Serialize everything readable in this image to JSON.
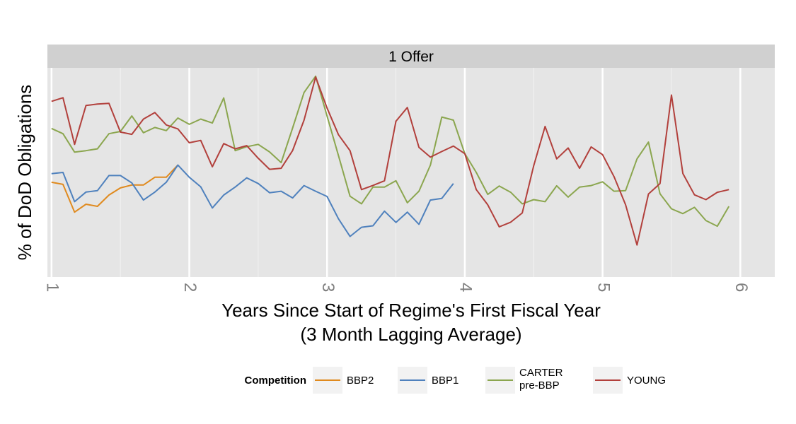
{
  "chart_data": {
    "type": "line",
    "panel_title": "1 Offer",
    "xlabel": "Years Since Start of Regime's First Fiscal Year",
    "xlabel_sub": "(3 Month Lagging Average)",
    "ylabel": "% of DoD Obligations",
    "xlim": [
      0.97,
      6.25
    ],
    "ylim": [
      0,
      1
    ],
    "x_ticks": [
      "1",
      "2",
      "3",
      "4",
      "5",
      "6"
    ],
    "y_ticks_shown": false,
    "grid": true,
    "legend": {
      "title": "Competition",
      "position": "bottom"
    },
    "series": [
      {
        "name": "BBP2",
        "color": "#e08a1e",
        "x": [
          1.0,
          1.083,
          1.167,
          1.25,
          1.333,
          1.417,
          1.5,
          1.583,
          1.667,
          1.75,
          1.833,
          1.917
        ],
        "y": [
          0.453,
          0.443,
          0.31,
          0.348,
          0.338,
          0.392,
          0.426,
          0.44,
          0.44,
          0.477,
          0.477,
          0.535
        ]
      },
      {
        "name": "BBP1",
        "color": "#4f81bd",
        "x": [
          1.0,
          1.083,
          1.167,
          1.25,
          1.333,
          1.417,
          1.5,
          1.583,
          1.667,
          1.75,
          1.833,
          1.917,
          2.0,
          2.083,
          2.167,
          2.25,
          2.333,
          2.417,
          2.5,
          2.583,
          2.667,
          2.75,
          2.833,
          2.917,
          3.0,
          3.083,
          3.167,
          3.25,
          3.333,
          3.417,
          3.5,
          3.583,
          3.667,
          3.75,
          3.833,
          3.917
        ],
        "y": [
          0.494,
          0.5,
          0.36,
          0.406,
          0.413,
          0.485,
          0.485,
          0.45,
          0.368,
          0.406,
          0.453,
          0.535,
          0.477,
          0.431,
          0.33,
          0.392,
          0.43,
          0.474,
          0.447,
          0.403,
          0.41,
          0.378,
          0.437,
          0.41,
          0.385,
          0.278,
          0.194,
          0.238,
          0.245,
          0.315,
          0.261,
          0.31,
          0.252,
          0.368,
          0.376,
          0.447
        ]
      },
      {
        "name": "CARTER\npre-BBP",
        "color": "#8ba64f",
        "x": [
          1.0,
          1.083,
          1.167,
          1.25,
          1.333,
          1.417,
          1.5,
          1.583,
          1.667,
          1.75,
          1.833,
          1.917,
          2.0,
          2.083,
          2.167,
          2.25,
          2.333,
          2.417,
          2.5,
          2.583,
          2.667,
          2.75,
          2.833,
          2.917,
          3.0,
          3.083,
          3.167,
          3.25,
          3.333,
          3.417,
          3.5,
          3.583,
          3.667,
          3.75,
          3.833,
          3.917,
          4.0,
          4.083,
          4.167,
          4.25,
          4.333,
          4.417,
          4.5,
          4.583,
          4.667,
          4.75,
          4.833,
          4.917,
          5.0,
          5.083,
          5.167,
          5.25,
          5.333,
          5.417,
          5.5,
          5.583,
          5.667,
          5.75,
          5.833,
          5.917
        ],
        "y": [
          0.71,
          0.685,
          0.597,
          0.604,
          0.613,
          0.685,
          0.696,
          0.77,
          0.69,
          0.715,
          0.7,
          0.76,
          0.73,
          0.755,
          0.736,
          0.856,
          0.604,
          0.623,
          0.634,
          0.598,
          0.547,
          0.713,
          0.882,
          0.96,
          0.77,
          0.58,
          0.386,
          0.35,
          0.43,
          0.43,
          0.46,
          0.355,
          0.41,
          0.535,
          0.765,
          0.75,
          0.59,
          0.5,
          0.395,
          0.435,
          0.405,
          0.35,
          0.37,
          0.36,
          0.436,
          0.382,
          0.43,
          0.437,
          0.455,
          0.41,
          0.413,
          0.565,
          0.645,
          0.398,
          0.326,
          0.303,
          0.333,
          0.27,
          0.243,
          0.338
        ]
      },
      {
        "name": "YOUNG",
        "color": "#b2403c",
        "x": [
          1.0,
          1.083,
          1.167,
          1.25,
          1.333,
          1.417,
          1.5,
          1.583,
          1.667,
          1.75,
          1.833,
          1.917,
          2.0,
          2.083,
          2.167,
          2.25,
          2.333,
          2.417,
          2.5,
          2.583,
          2.667,
          2.75,
          2.833,
          2.917,
          3.0,
          3.083,
          3.167,
          3.25,
          3.333,
          3.417,
          3.5,
          3.583,
          3.667,
          3.75,
          3.833,
          3.917,
          4.0,
          4.083,
          4.167,
          4.25,
          4.333,
          4.417,
          4.5,
          4.583,
          4.667,
          4.75,
          4.833,
          4.917,
          5.0,
          5.083,
          5.167,
          5.25,
          5.333,
          5.417,
          5.5,
          5.583,
          5.667,
          5.75,
          5.833,
          5.917
        ],
        "y": [
          0.84,
          0.857,
          0.634,
          0.82,
          0.827,
          0.83,
          0.693,
          0.682,
          0.755,
          0.786,
          0.727,
          0.708,
          0.642,
          0.653,
          0.527,
          0.638,
          0.613,
          0.628,
          0.568,
          0.515,
          0.52,
          0.605,
          0.75,
          0.956,
          0.808,
          0.68,
          0.604,
          0.418,
          0.438,
          0.46,
          0.745,
          0.81,
          0.62,
          0.573,
          0.6,
          0.626,
          0.59,
          0.418,
          0.345,
          0.24,
          0.262,
          0.306,
          0.532,
          0.72,
          0.565,
          0.617,
          0.52,
          0.622,
          0.585,
          0.48,
          0.346,
          0.153,
          0.397,
          0.447,
          0.87,
          0.495,
          0.393,
          0.37,
          0.405,
          0.418
        ]
      }
    ]
  }
}
